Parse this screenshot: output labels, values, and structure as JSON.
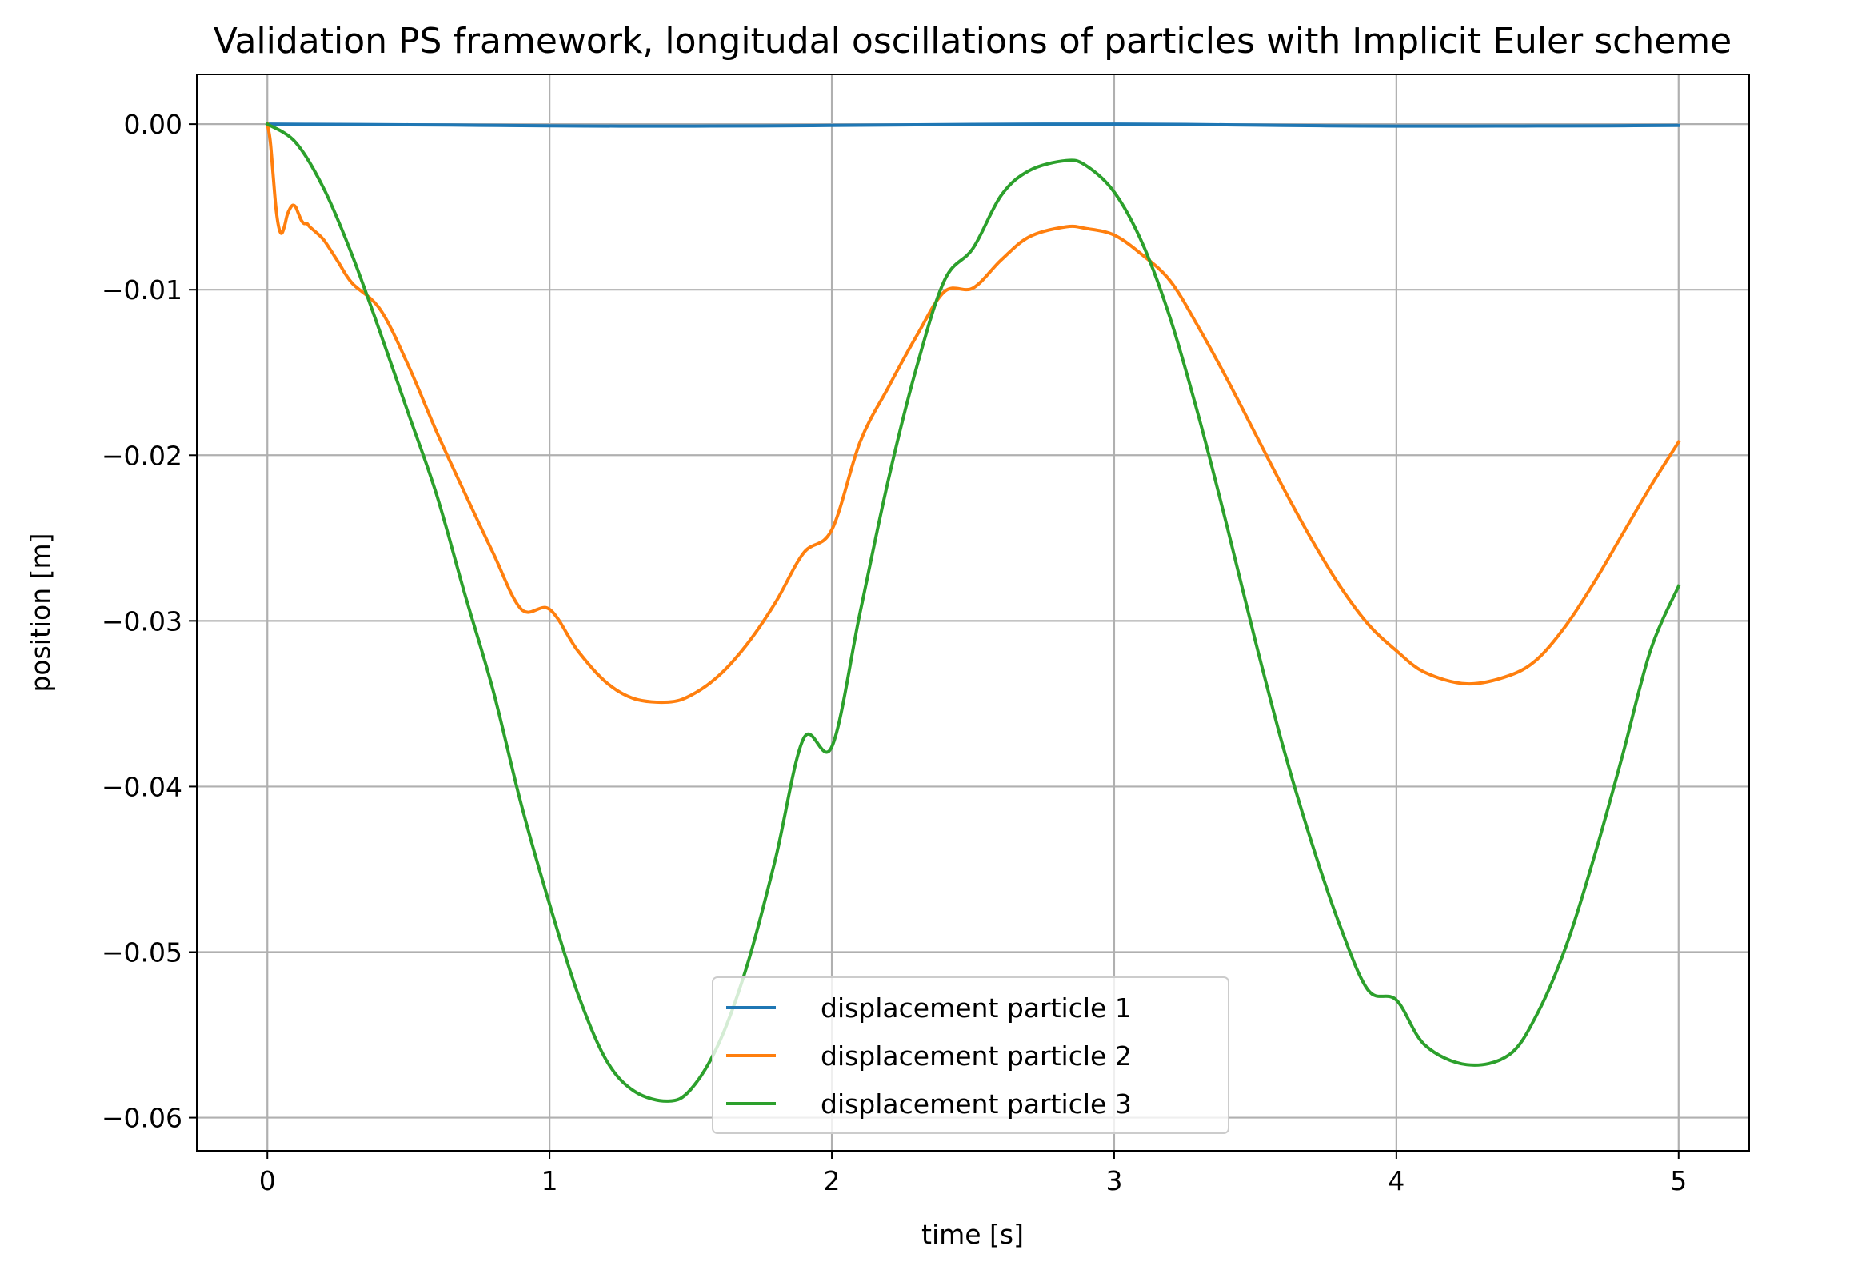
{
  "chart_data": {
    "type": "line",
    "title": "Validation PS framework, longitudal oscillations of particles with Implicit Euler scheme",
    "xlabel": "time [s]",
    "ylabel": "position [m]",
    "xlim": [
      -0.25,
      5.25
    ],
    "ylim": [
      -0.062,
      0.003
    ],
    "xticks": [
      0,
      1,
      2,
      3,
      4,
      5
    ],
    "xtick_labels": [
      "0",
      "1",
      "2",
      "3",
      "4",
      "5"
    ],
    "yticks": [
      0.0,
      -0.01,
      -0.02,
      -0.03,
      -0.04,
      -0.05,
      -0.06
    ],
    "ytick_labels": [
      "0.00",
      "−0.01",
      "−0.02",
      "−0.03",
      "−0.04",
      "−0.05",
      "−0.06"
    ],
    "grid": true,
    "legend_position": "lower center",
    "series": [
      {
        "name": "displacement particle 1",
        "color": "#1f77b4",
        "x": [
          0,
          0.25,
          0.5,
          0.75,
          1.0,
          1.25,
          1.5,
          1.75,
          2.0,
          2.25,
          2.5,
          2.75,
          3.0,
          3.25,
          3.5,
          3.75,
          4.0,
          4.25,
          4.5,
          4.75,
          5.0
        ],
        "y": [
          0.0,
          -2e-05,
          -4e-05,
          -7e-05,
          -0.0001,
          -0.00012,
          -0.00012,
          -0.00011,
          -8e-05,
          -5e-05,
          -2e-05,
          0.0,
          0.0,
          -2e-05,
          -6e-05,
          -0.0001,
          -0.00012,
          -0.00012,
          -0.00011,
          -0.0001,
          -8e-05
        ]
      },
      {
        "name": "displacement particle 2",
        "color": "#ff7f0e",
        "x": [
          0,
          0.01,
          0.02,
          0.03,
          0.04,
          0.05,
          0.06,
          0.07,
          0.08,
          0.09,
          0.1,
          0.11,
          0.12,
          0.13,
          0.14,
          0.15,
          0.17,
          0.2,
          0.25,
          0.3,
          0.4,
          0.5,
          0.6,
          0.7,
          0.8,
          0.9,
          1.0,
          1.1,
          1.2,
          1.3,
          1.42,
          1.5,
          1.6,
          1.7,
          1.8,
          1.9,
          2.0,
          2.1,
          2.2,
          2.3,
          2.4,
          2.5,
          2.6,
          2.7,
          2.83,
          2.9,
          3.0,
          3.1,
          3.2,
          3.3,
          3.4,
          3.5,
          3.6,
          3.7,
          3.8,
          3.9,
          4.0,
          4.1,
          4.25,
          4.4,
          4.5,
          4.6,
          4.7,
          4.8,
          4.9,
          5.0
        ],
        "y": [
          0.0,
          -0.001,
          -0.003,
          -0.005,
          -0.0062,
          -0.0066,
          -0.0062,
          -0.0055,
          -0.0051,
          -0.0049,
          -0.005,
          -0.0054,
          -0.0058,
          -0.006,
          -0.006,
          -0.0062,
          -0.0065,
          -0.007,
          -0.0083,
          -0.0096,
          -0.0112,
          -0.0146,
          -0.0186,
          -0.0223,
          -0.0259,
          -0.0293,
          -0.0293,
          -0.0318,
          -0.0337,
          -0.0347,
          -0.0349,
          -0.0345,
          -0.0333,
          -0.0314,
          -0.0289,
          -0.0259,
          -0.0245,
          -0.0192,
          -0.0159,
          -0.0128,
          -0.0101,
          -0.0099,
          -0.0082,
          -0.0068,
          -0.0062,
          -0.0063,
          -0.0067,
          -0.0079,
          -0.0095,
          -0.0123,
          -0.0154,
          -0.0187,
          -0.022,
          -0.0251,
          -0.0279,
          -0.0302,
          -0.0318,
          -0.0331,
          -0.0338,
          -0.0333,
          -0.0323,
          -0.0303,
          -0.0277,
          -0.0248,
          -0.0219,
          -0.0192
        ]
      },
      {
        "name": "displacement particle 3",
        "color": "#2ca02c",
        "x": [
          0,
          0.1,
          0.2,
          0.3,
          0.4,
          0.5,
          0.6,
          0.7,
          0.8,
          0.9,
          1.0,
          1.1,
          1.2,
          1.3,
          1.42,
          1.5,
          1.6,
          1.7,
          1.8,
          1.9,
          2.0,
          2.1,
          2.2,
          2.3,
          2.4,
          2.5,
          2.6,
          2.7,
          2.83,
          2.9,
          3.0,
          3.1,
          3.2,
          3.3,
          3.4,
          3.5,
          3.6,
          3.7,
          3.8,
          3.9,
          4.0,
          4.1,
          4.25,
          4.4,
          4.5,
          4.6,
          4.7,
          4.8,
          4.9,
          5.0
        ],
        "y": [
          0.0,
          -0.0011,
          -0.0039,
          -0.0079,
          -0.0126,
          -0.0175,
          -0.0224,
          -0.0284,
          -0.0342,
          -0.0411,
          -0.0471,
          -0.0525,
          -0.0565,
          -0.0584,
          -0.059,
          -0.0583,
          -0.0555,
          -0.0508,
          -0.0444,
          -0.0371,
          -0.0376,
          -0.0295,
          -0.0215,
          -0.0147,
          -0.0094,
          -0.0075,
          -0.0043,
          -0.0028,
          -0.0022,
          -0.0025,
          -0.0041,
          -0.0072,
          -0.0118,
          -0.0177,
          -0.0243,
          -0.0312,
          -0.0377,
          -0.0434,
          -0.0484,
          -0.0523,
          -0.0529,
          -0.0556,
          -0.0568,
          -0.0562,
          -0.0537,
          -0.0497,
          -0.0443,
          -0.0382,
          -0.0318,
          -0.0279
        ]
      }
    ]
  }
}
